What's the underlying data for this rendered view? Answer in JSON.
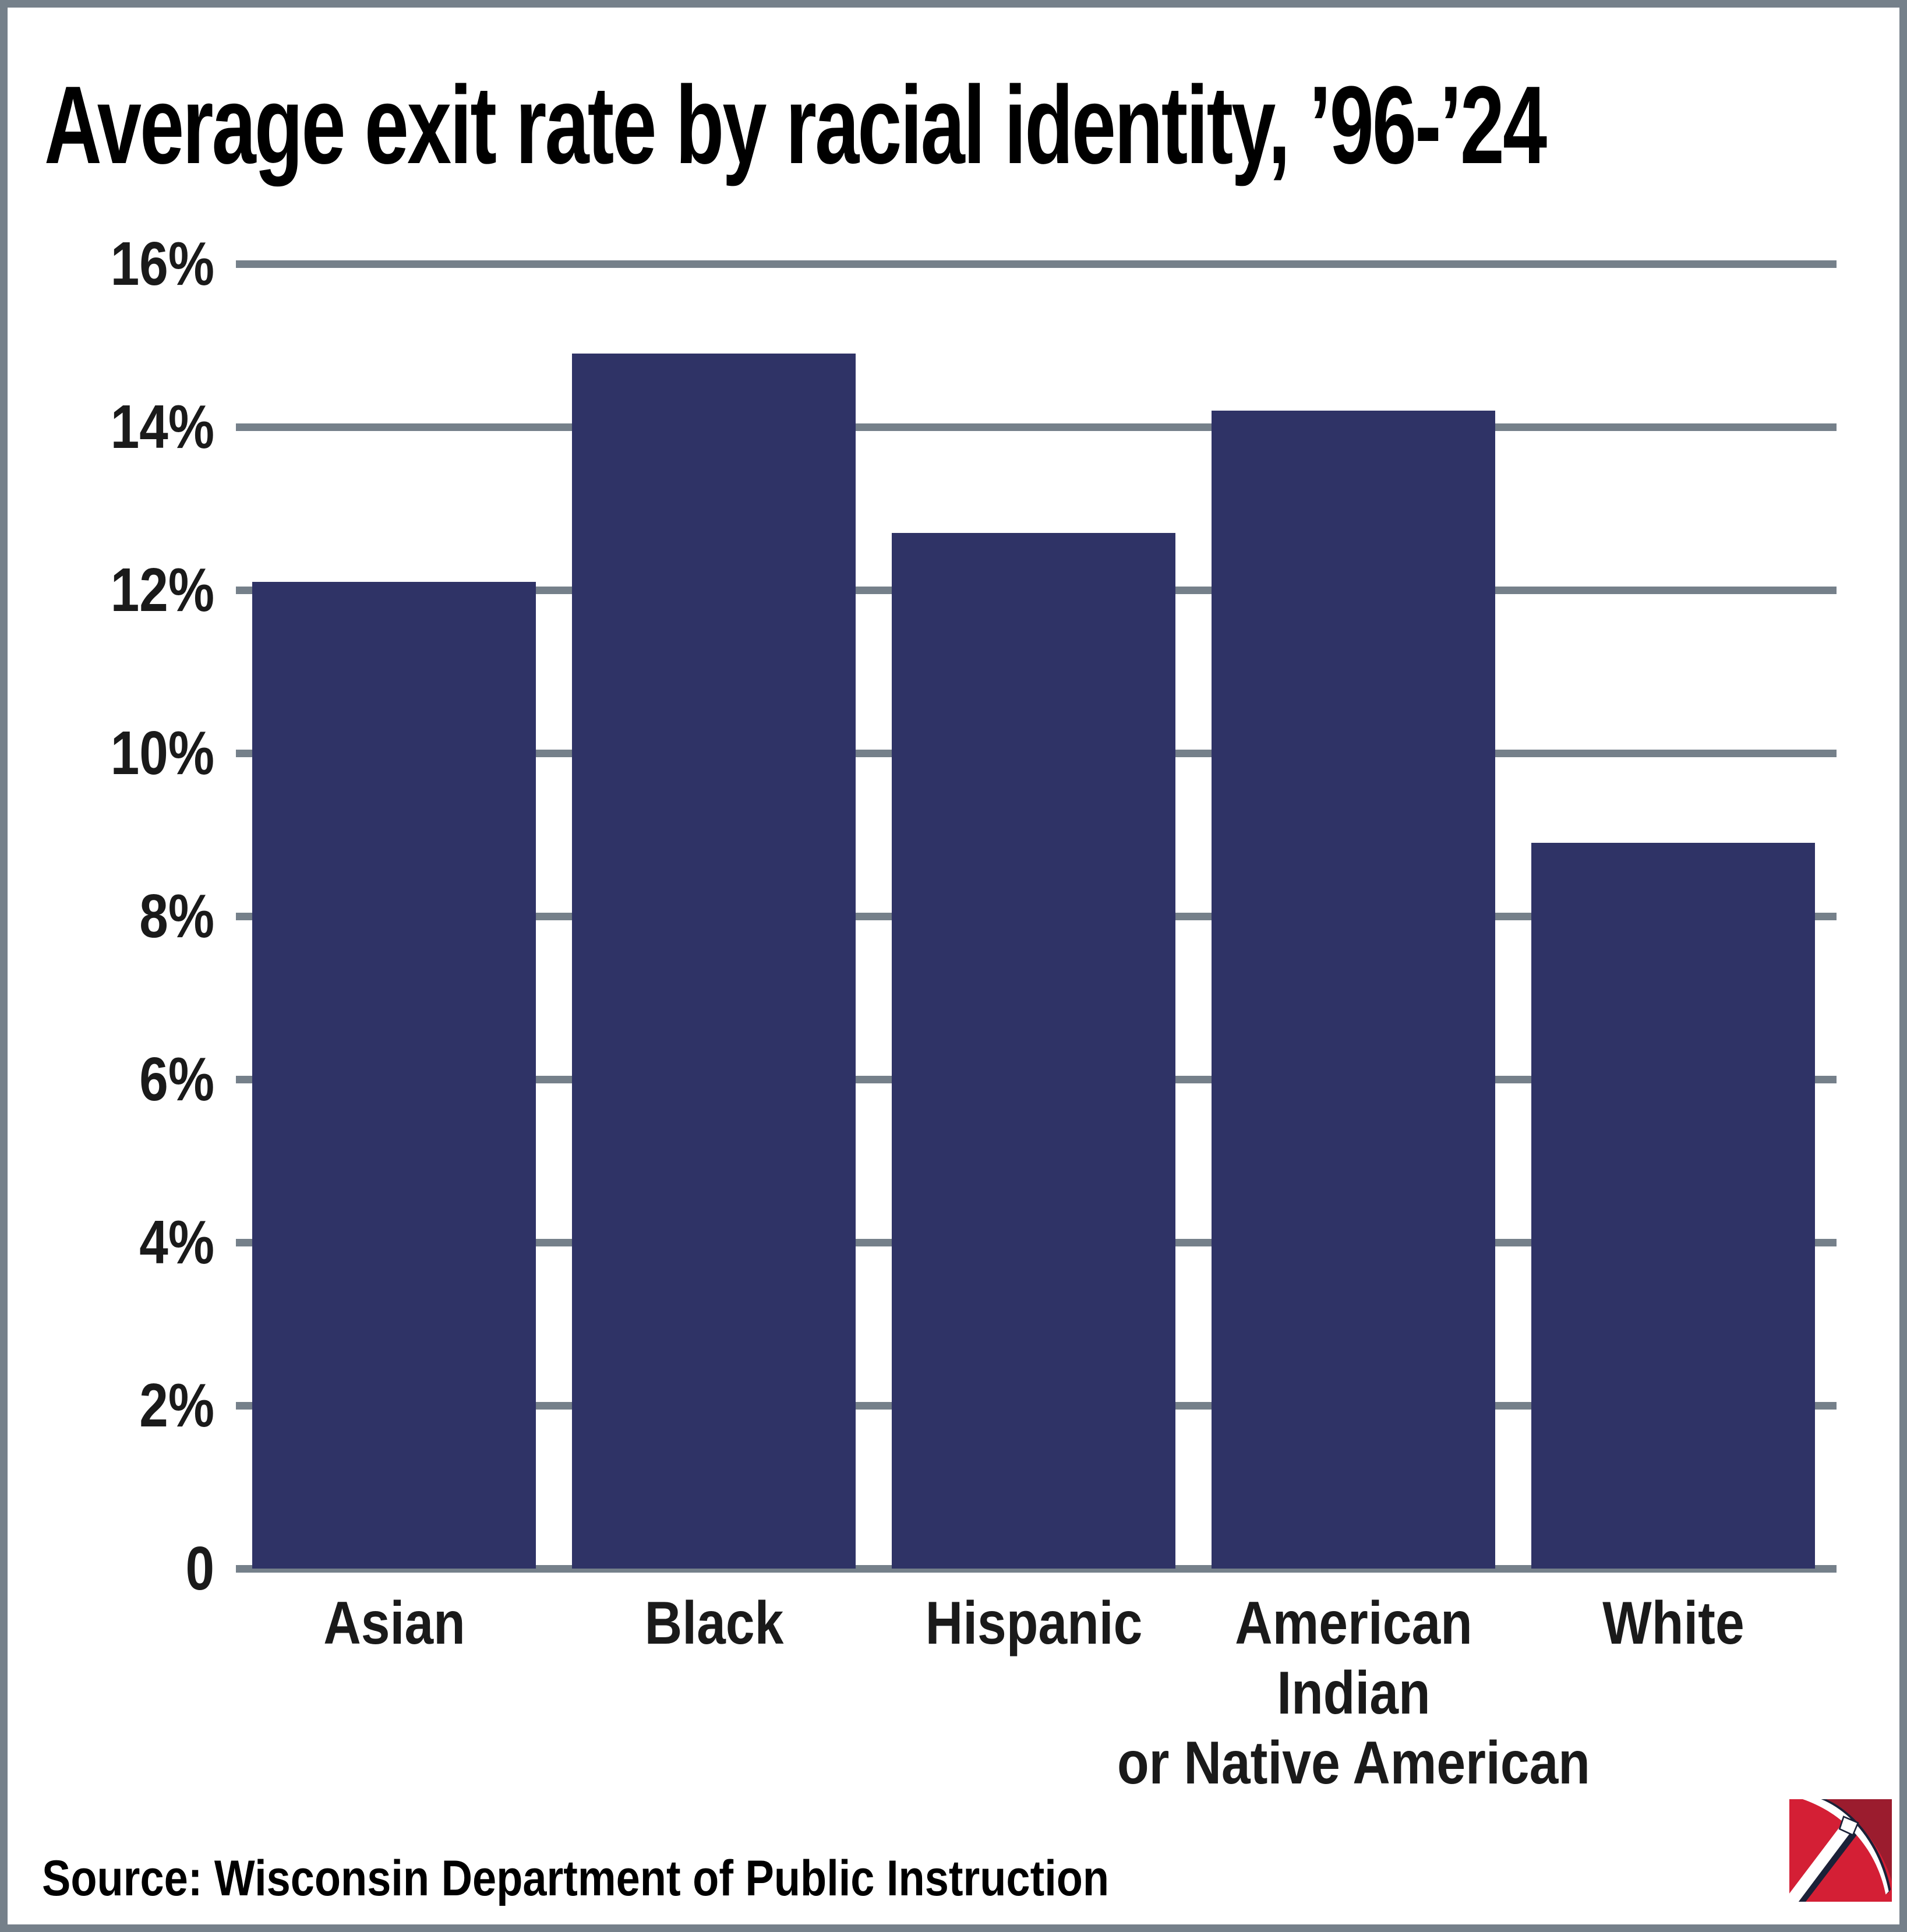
{
  "title": "Average exit rate by racial identity, ’96-’24",
  "source": "Source: Wisconsin Department of Public Instruction",
  "colors": {
    "bar": "#2f3366",
    "grid": "#75808a",
    "frame": "#75808a",
    "background": "#ffffff",
    "text": "#000000",
    "logo_red": "#d41f35",
    "logo_dark_red": "#9b1c2e",
    "logo_navy": "#1b2138",
    "logo_white": "#ffffff"
  },
  "chart_data": {
    "type": "bar",
    "title": "Average exit rate by racial identity, ’96-’24",
    "categories": [
      "Asian",
      "Black",
      "Hispanic",
      "American Indian or Native American",
      "White"
    ],
    "category_lines": [
      [
        "Asian"
      ],
      [
        "Black"
      ],
      [
        "Hispanic"
      ],
      [
        "American",
        "Indian",
        "or Native American"
      ],
      [
        "White"
      ]
    ],
    "values": [
      12.1,
      14.9,
      12.7,
      14.2,
      8.9
    ],
    "unit": "%",
    "xlabel": "",
    "ylabel": "",
    "ylim": [
      0,
      16
    ],
    "yticks": [
      {
        "value": 16,
        "label": "16%"
      },
      {
        "value": 14,
        "label": "14%"
      },
      {
        "value": 12,
        "label": "12%"
      },
      {
        "value": 10,
        "label": "10%"
      },
      {
        "value": 8,
        "label": "8%"
      },
      {
        "value": 6,
        "label": "6%"
      },
      {
        "value": 4,
        "label": "4%"
      },
      {
        "value": 2,
        "label": "2%"
      },
      {
        "value": 0,
        "label": "0"
      }
    ],
    "grid": "horizontal-only",
    "legend": "none",
    "bar_color": "#2f3366"
  },
  "logo": {
    "name": "pickaxe-logo",
    "description": "red square with white pickaxe"
  }
}
